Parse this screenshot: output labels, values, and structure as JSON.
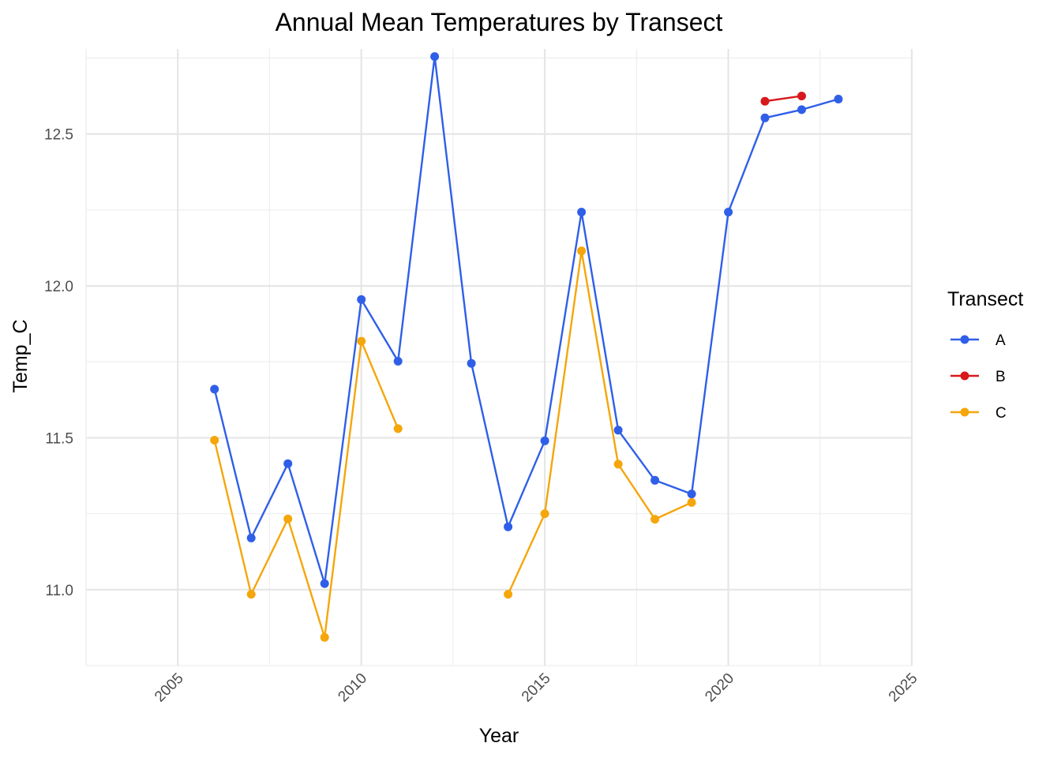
{
  "chart_data": {
    "type": "line",
    "title": "Annual Mean Temperatures by Transect",
    "xlabel": "Year",
    "ylabel": "Temp_C",
    "xlim": [
      2002.5,
      2025
    ],
    "ylim": [
      10.75,
      12.78
    ],
    "x_ticks": [
      2005,
      2010,
      2015,
      2020,
      2025
    ],
    "y_ticks": [
      11.0,
      11.5,
      12.0,
      12.5
    ],
    "y_tick_labels": [
      "11.0",
      "11.5",
      "12.0",
      "12.5"
    ],
    "grid": true,
    "legend": {
      "title": "Transect",
      "placement": "right"
    },
    "series": [
      {
        "name": "A",
        "color": "#2f5fe8",
        "segments": [
          [
            [
              2006,
              11.66
            ],
            [
              2007,
              11.17
            ],
            [
              2008,
              11.415
            ],
            [
              2009,
              11.02
            ],
            [
              2010,
              11.955
            ],
            [
              2011,
              11.752
            ],
            [
              2012,
              12.755
            ],
            [
              2013,
              11.745
            ],
            [
              2014,
              11.207
            ],
            [
              2015,
              11.49
            ],
            [
              2016,
              12.243
            ],
            [
              2017,
              11.525
            ],
            [
              2018,
              11.36
            ],
            [
              2019,
              11.315
            ],
            [
              2020,
              12.243
            ],
            [
              2021,
              12.553
            ],
            [
              2022,
              12.58
            ],
            [
              2023,
              12.615
            ]
          ]
        ]
      },
      {
        "name": "B",
        "color": "#d7191c",
        "segments": [
          [
            [
              2021,
              12.608
            ],
            [
              2022,
              12.625
            ]
          ]
        ]
      },
      {
        "name": "C",
        "color": "#f5a60b",
        "segments": [
          [
            [
              2006,
              11.492
            ],
            [
              2007,
              10.985
            ],
            [
              2008,
              11.233
            ],
            [
              2009,
              10.843
            ],
            [
              2010,
              11.818
            ],
            [
              2011,
              11.53
            ]
          ],
          [
            [
              2014,
              10.985
            ],
            [
              2015,
              11.25
            ],
            [
              2016,
              12.115
            ],
            [
              2017,
              11.413
            ],
            [
              2018,
              11.232
            ],
            [
              2019,
              11.287
            ]
          ]
        ]
      }
    ]
  }
}
